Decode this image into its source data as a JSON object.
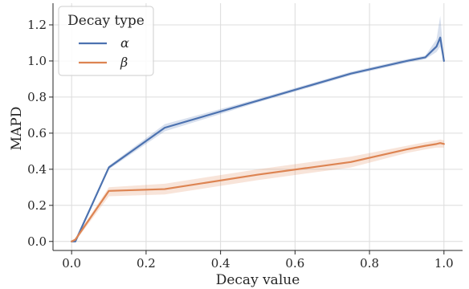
{
  "chart_data": {
    "type": "line",
    "xlabel": "Decay value",
    "ylabel": "MAPD",
    "xlim": [
      -0.05,
      1.05
    ],
    "ylim": [
      -0.05,
      1.32
    ],
    "xticks": [
      0.0,
      0.2,
      0.4,
      0.6,
      0.8,
      1.0
    ],
    "xtick_labels": [
      "0.0",
      "0.2",
      "0.4",
      "0.6",
      "0.8",
      "1.0"
    ],
    "yticks": [
      0.0,
      0.2,
      0.4,
      0.6,
      0.8,
      1.0,
      1.2
    ],
    "ytick_labels": [
      "0.0",
      "0.2",
      "0.4",
      "0.6",
      "0.8",
      "1.0",
      "1.2"
    ],
    "grid": true,
    "legend": {
      "title": "Decay type",
      "placement": "top-left"
    },
    "series": [
      {
        "name": "α",
        "color": "#4c72b0",
        "x": [
          0.0,
          0.01,
          0.1,
          0.25,
          0.5,
          0.75,
          0.9,
          0.95,
          0.98,
          0.99,
          1.0
        ],
        "y": [
          0.0,
          0.0,
          0.41,
          0.63,
          0.78,
          0.93,
          1.0,
          1.02,
          1.08,
          1.13,
          1.0
        ],
        "ci_low": [
          0.0,
          0.0,
          0.4,
          0.61,
          0.77,
          0.92,
          0.99,
          1.01,
          1.05,
          1.08,
          0.99
        ],
        "ci_high": [
          0.0,
          0.0,
          0.42,
          0.65,
          0.79,
          0.94,
          1.01,
          1.03,
          1.12,
          1.25,
          1.01
        ]
      },
      {
        "name": "β",
        "color": "#dd8452",
        "x": [
          0.0,
          0.01,
          0.1,
          0.25,
          0.5,
          0.75,
          0.9,
          0.95,
          0.98,
          0.99,
          1.0
        ],
        "y": [
          0.0,
          0.01,
          0.28,
          0.29,
          0.37,
          0.44,
          0.51,
          0.53,
          0.54,
          0.545,
          0.54
        ],
        "ci_low": [
          0.0,
          0.0,
          0.25,
          0.26,
          0.34,
          0.41,
          0.49,
          0.51,
          0.52,
          0.52,
          0.52
        ],
        "ci_high": [
          0.0,
          0.02,
          0.3,
          0.32,
          0.4,
          0.47,
          0.53,
          0.55,
          0.56,
          0.565,
          0.56
        ]
      }
    ]
  }
}
